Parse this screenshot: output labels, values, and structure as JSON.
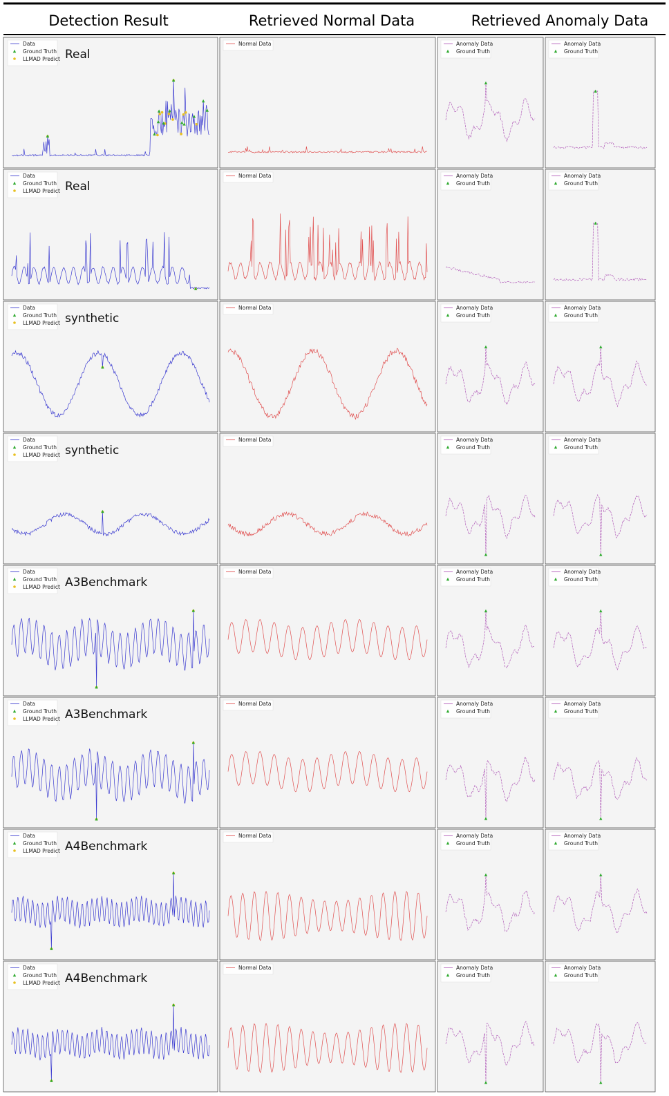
{
  "headers": {
    "detection": "Detection Result",
    "normal": "Retrieved Normal Data",
    "anomaly": "Retrieved Anomaly Data"
  },
  "legend": {
    "data": "Data",
    "ground_truth": "Ground Truth",
    "llmad_predict": "LLMAD Predict",
    "normal_data": "Normal Data",
    "anomaly_data": "Anomaly Data"
  },
  "colors": {
    "data": "#3b3bd0",
    "normal": "#e05050",
    "anomaly": "#b05ab8",
    "ground_truth": "#2faa2f",
    "predict": "#e8c020",
    "panel": "#f4f4f4"
  },
  "chart_data": {
    "type": "line",
    "panel_grid": {
      "rows": 8,
      "columns": [
        "detection",
        "normal",
        "anomaly",
        "anomaly"
      ]
    },
    "rows": [
      {
        "dataset": "Real",
        "pattern": "spiky-baseline",
        "anomaly_regions": [
          "late burst of green ground-truth points with yellow predictions"
        ]
      },
      {
        "dataset": "Real",
        "pattern": "periodic-spikes",
        "anomaly_regions": [
          "low flat segment at end flagged by predictions"
        ]
      },
      {
        "dataset": "synthetic",
        "pattern": "sine-large",
        "anomaly_regions": [
          "single spike between first trough and second peak"
        ]
      },
      {
        "dataset": "synthetic",
        "pattern": "sine-small",
        "anomaly_regions": [
          "single small spike at middle"
        ]
      },
      {
        "dataset": "A3Benchmark",
        "pattern": "oscillation",
        "anomaly_regions": [
          "downward spike",
          "upward spike near end"
        ]
      },
      {
        "dataset": "A3Benchmark",
        "pattern": "oscillation",
        "anomaly_regions": [
          "several downward spikes",
          "upward spike"
        ]
      },
      {
        "dataset": "A4Benchmark",
        "pattern": "oscillation-fast",
        "anomaly_regions": [
          "upward spikes",
          "downward spikes"
        ]
      },
      {
        "dataset": "A4Benchmark",
        "pattern": "oscillation-fast",
        "anomaly_regions": [
          "large spike at middle",
          "downward spikes"
        ]
      }
    ]
  }
}
